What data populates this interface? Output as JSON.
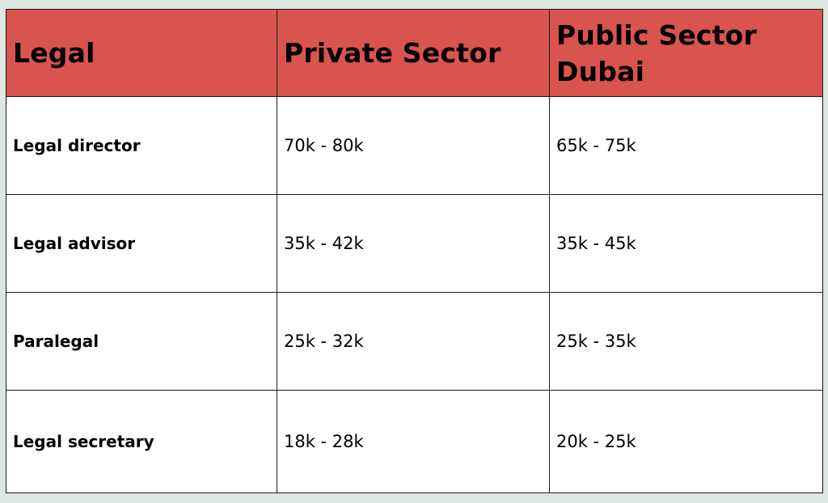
{
  "table": {
    "headers": [
      "Legal",
      "Private Sector",
      "Public Sector Dubai"
    ],
    "header_color": "#d9534f",
    "rows": [
      {
        "role": "Legal director",
        "private": "70k - 80k",
        "public": "65k - 75k"
      },
      {
        "role": "Legal advisor",
        "private": "35k - 42k",
        "public": "35k - 45k"
      },
      {
        "role": "Paralegal",
        "private": "25k - 32k",
        "public": "25k - 35k"
      },
      {
        "role": "Legal secretary",
        "private": "18k - 28k",
        "public": "20k - 25k"
      }
    ]
  }
}
